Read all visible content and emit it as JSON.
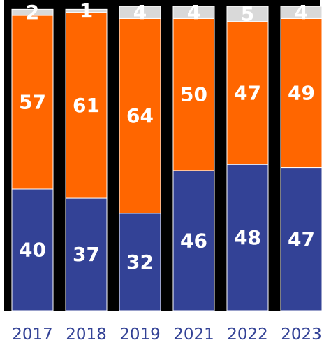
{
  "chart_data": {
    "type": "bar",
    "stacked": true,
    "categories": [
      "2017",
      "2018",
      "2019",
      "2021",
      "2022",
      "2023"
    ],
    "series": [
      {
        "values": [
          40,
          37,
          32,
          46,
          48,
          47
        ],
        "color": "#334296"
      },
      {
        "values": [
          57,
          61,
          64,
          50,
          47,
          49
        ],
        "color": "#ff6600"
      },
      {
        "values": [
          2,
          1,
          4,
          4,
          5,
          4
        ],
        "color": "#d9d9d9"
      }
    ],
    "ylim": [
      0,
      100
    ],
    "grid": false,
    "colors": {
      "background_band": "#000000",
      "tick_label": "#334296",
      "segment_label": "#ffffff"
    }
  }
}
